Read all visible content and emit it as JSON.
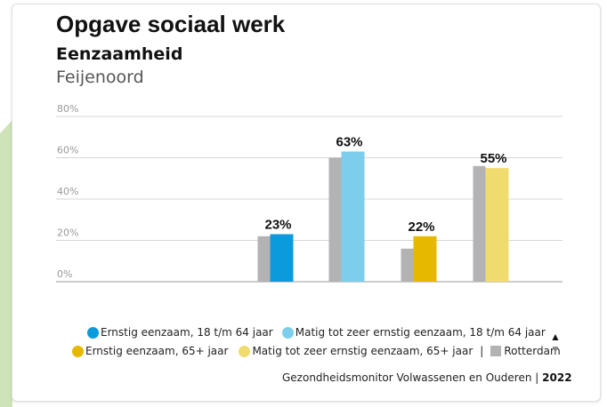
{
  "header": {
    "title": "Opgave sociaal werk",
    "subtitle": "Eenzaamheid",
    "place": "Feijenoord"
  },
  "chart_data": {
    "type": "bar",
    "ylim": [
      0,
      80
    ],
    "yticks": [
      0,
      20,
      40,
      60,
      80
    ],
    "ytick_labels": [
      "0%",
      "20%",
      "40%",
      "60%",
      "80%"
    ],
    "grid": true,
    "groups": [
      {
        "series": "Ernstig eenzaam, 18 t/m 64 jaar",
        "value": 23,
        "label": "23%",
        "rotterdam": 22
      },
      {
        "series": "Matig tot zeer ernstig eenzaam, 18 t/m 64 jaar",
        "value": 63,
        "label": "63%",
        "rotterdam": 60
      },
      {
        "series": "Ernstig eenzaam, 65+ jaar",
        "value": 22,
        "label": "22%",
        "rotterdam": 16
      },
      {
        "series": "Matig tot zeer ernstig eenzaam, 65+ jaar",
        "value": 55,
        "label": "55%",
        "rotterdam": 56
      }
    ],
    "legend_position": "bottom"
  },
  "legend": {
    "items": [
      {
        "label": "Ernstig eenzaam, 18 t/m 64 jaar",
        "color": "#0b9bdc"
      },
      {
        "label": "Matig tot zeer ernstig eenzaam, 18 t/m 64 jaar",
        "color": "#7dcdec"
      },
      {
        "label": "Ernstig eenzaam, 65+ jaar",
        "color": "#e6b800"
      },
      {
        "label": "Matig tot zeer ernstig eenzaam, 65+ jaar",
        "color": "#f0dc6e"
      }
    ],
    "separator": "|",
    "reference": {
      "label": "Rotterdam",
      "color": "#b3b3b5"
    },
    "arrow_up": "▲",
    "arrow_down": "▼"
  },
  "source": {
    "text": "Gezondheidsmonitor Volwassenen en Ouderen",
    "separator": "|",
    "year": "2022"
  }
}
